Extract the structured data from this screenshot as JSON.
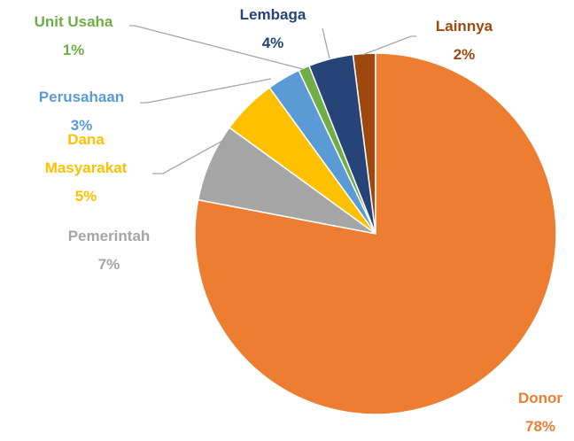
{
  "chart_data": {
    "type": "pie",
    "categories": [
      "Donor",
      "Pemerintah",
      "Dana Masyarakat",
      "Perusahaan",
      "Unit Usaha",
      "Lembaga",
      "Lainnya"
    ],
    "values": [
      78,
      7,
      5,
      3,
      1,
      4,
      2
    ],
    "value_labels": [
      "78%",
      "7%",
      "5%",
      "3%",
      "1%",
      "4%",
      "2%"
    ],
    "colors": [
      "#ed7d31",
      "#a5a5a5",
      "#ffc000",
      "#5b9bd5",
      "#70ad47",
      "#264478",
      "#9e480e"
    ]
  }
}
